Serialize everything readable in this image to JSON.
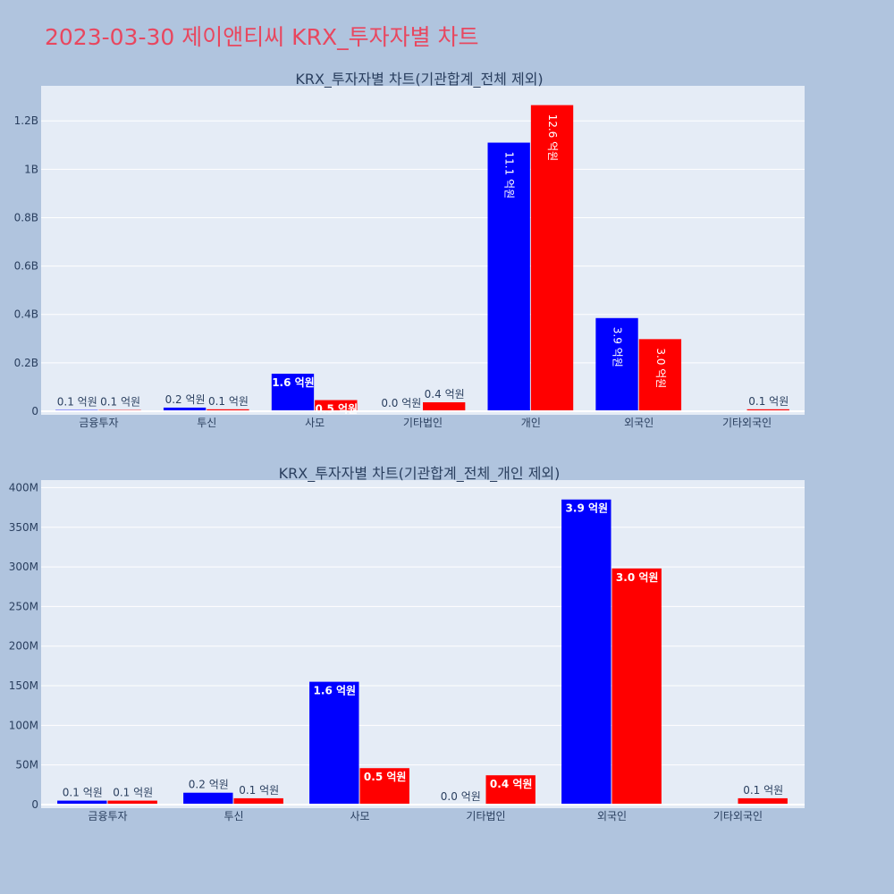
{
  "page": {
    "title": "2023-03-30 제이앤티씨 KRX_투자자별 차트"
  },
  "colors": {
    "buy": "#0000FF",
    "sell": "#FF0000",
    "background": "#B0C4DE",
    "plot_bg": "#E5ECF6",
    "text": "#2A3F5F"
  },
  "chart_data": [
    {
      "type": "bar",
      "title": "KRX_투자자별 차트(기관합계_전체 제외)",
      "categories": [
        "금융투자",
        "투신",
        "사모",
        "기타법인",
        "개인",
        "외국인",
        "기타외국인"
      ],
      "series": [
        {
          "values": [
            5000000,
            15000000,
            155000000,
            0,
            1110000000,
            385000000,
            0
          ],
          "labels": [
            "0.1 억원",
            "0.2 억원",
            "1.6 억원",
            "0.0 억원",
            "11.1 억원",
            "3.9 억원",
            ""
          ]
        },
        {
          "values": [
            5000000,
            8000000,
            46000000,
            37000000,
            1265000000,
            298000000,
            8000000
          ],
          "labels": [
            "0.1 억원",
            "0.1 억원",
            "0.5 억원",
            "0.4 억원",
            "12.6 억원",
            "3.0 억원",
            "0.1 억원"
          ]
        }
      ],
      "ylim": [
        0,
        1330000000
      ],
      "yticks": [
        0,
        200000000,
        400000000,
        600000000,
        800000000,
        1000000000,
        1200000000
      ],
      "ytick_labels": [
        "0",
        "0.2B",
        "0.4B",
        "0.6B",
        "0.8B",
        "1B",
        "1.2B"
      ],
      "grid": true
    },
    {
      "type": "bar",
      "title": "KRX_투자자별 차트(기관합계_전체_개인 제외)",
      "categories": [
        "금융투자",
        "투신",
        "사모",
        "기타법인",
        "외국인",
        "기타외국인"
      ],
      "series": [
        {
          "values": [
            5000000,
            15000000,
            155000000,
            0,
            385000000,
            0
          ],
          "labels": [
            "0.1 억원",
            "0.2 억원",
            "1.6 억원",
            "0.0 억원",
            "3.9 억원",
            ""
          ]
        },
        {
          "values": [
            5000000,
            8000000,
            46000000,
            37000000,
            298000000,
            8000000
          ],
          "labels": [
            "0.1 억원",
            "0.1 억원",
            "0.5 억원",
            "0.4 억원",
            "3.0 억원",
            "0.1 억원"
          ]
        }
      ],
      "ylim": [
        0,
        405000000
      ],
      "yticks": [
        0,
        50000000,
        100000000,
        150000000,
        200000000,
        250000000,
        300000000,
        350000000,
        400000000
      ],
      "ytick_labels": [
        "0",
        "50M",
        "100M",
        "150M",
        "200M",
        "250M",
        "300M",
        "350M",
        "400M"
      ],
      "grid": true
    }
  ]
}
